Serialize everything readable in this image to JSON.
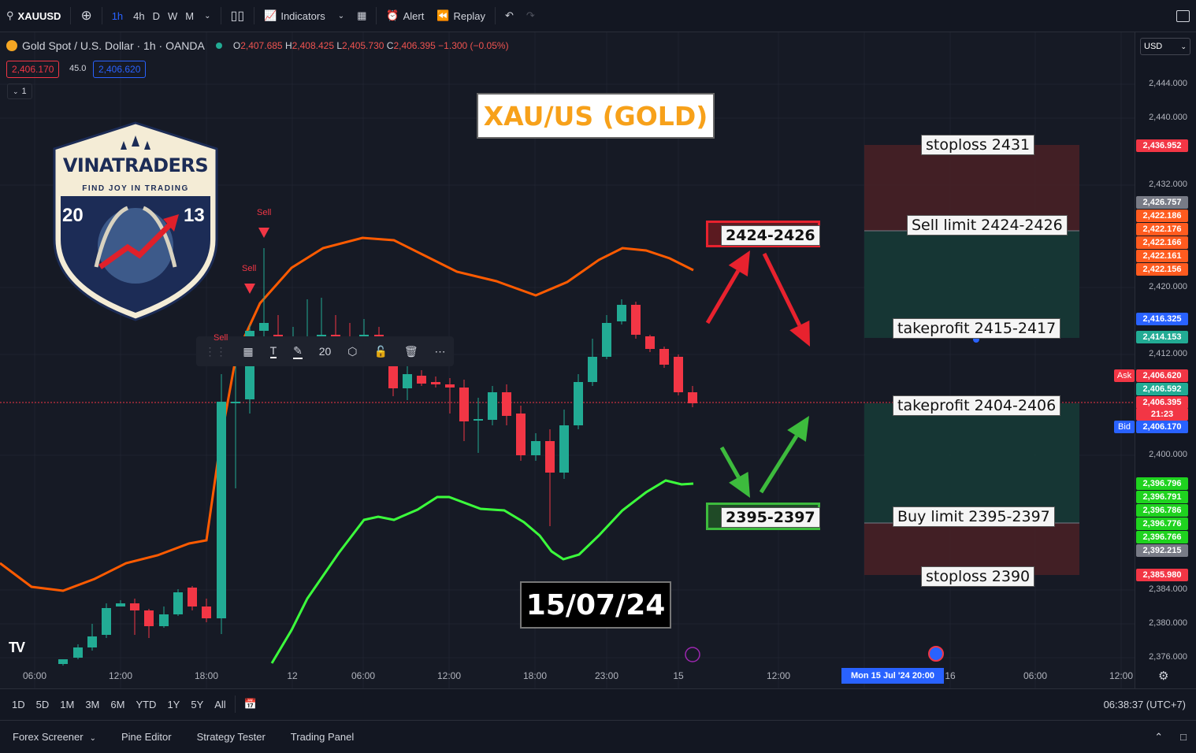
{
  "topbar": {
    "symbol": "XAUUSD",
    "intervals": [
      "1h",
      "4h",
      "D",
      "W",
      "M"
    ],
    "indicators": "Indicators",
    "alert": "Alert",
    "replay": "Replay"
  },
  "legend": {
    "title": "Gold Spot / U.S. Dollar · 1h · OANDA",
    "o_label": "O",
    "o": "2,407.685",
    "h_label": "H",
    "h": "2,408.425",
    "l_label": "L",
    "l": "2,405.730",
    "c_label": "C",
    "c": "2,406.395",
    "change": "−1.300 (−0.05%)",
    "bid": "2,406.170",
    "spread": "45.0",
    "ask": "2,406.620",
    "collapse": "1"
  },
  "currency": "USD",
  "chart_title": "XAU/US (GOLD)",
  "date_box": "15/07/24",
  "logo": {
    "name": "VINATRADERS",
    "tagline": "FIND JOY IN TRADING",
    "year_left": "20",
    "year_right": "13"
  },
  "signals": [
    "Sell",
    "Sell",
    "Sell"
  ],
  "float_toolbar": {
    "size": "20"
  },
  "zones": {
    "sell_zone_label": "2424-2426",
    "buy_zone_label": "2395-2397",
    "stoploss_top": "stoploss 2431",
    "sell_limit": "Sell limit 2424-2426",
    "takeprofit_1": "takeprofit 2415-2417",
    "takeprofit_2": "takeprofit 2404-2406",
    "buy_limit": "Buy limit 2395-2397",
    "stoploss_bottom": "stoploss 2390"
  },
  "price_axis": {
    "labels": [
      "2,444.000",
      "2,440.000",
      "2,432.000",
      "2,420.000",
      "2,412.000",
      "2,400.000",
      "2,384.000",
      "2,380.000",
      "2,376.000"
    ],
    "tags": [
      {
        "text": "2,436.952",
        "color": "#f23645"
      },
      {
        "text": "2,426.757",
        "color": "#787b86"
      },
      {
        "text": "2,422.186",
        "color": "#ff5b1f"
      },
      {
        "text": "2,422.176",
        "color": "#ff5b1f"
      },
      {
        "text": "2,422.166",
        "color": "#ff5b1f"
      },
      {
        "text": "2,422.161",
        "color": "#ff5b1f"
      },
      {
        "text": "2,422.156",
        "color": "#ff5b1f"
      },
      {
        "text": "2,416.325",
        "color": "#2962ff"
      },
      {
        "text": "2,414.153",
        "color": "#22ab94"
      },
      {
        "text": "2,406.620",
        "color": "#f23645"
      },
      {
        "text": "2,406.592",
        "color": "#22ab94"
      },
      {
        "text": "2,406.395",
        "color": "#f23645"
      },
      {
        "text": "21:23",
        "color": "#f23645"
      },
      {
        "text": "2,406.170",
        "color": "#2962ff"
      },
      {
        "text": "2,396.796",
        "color": "#1fd31f"
      },
      {
        "text": "2,396.791",
        "color": "#1fd31f"
      },
      {
        "text": "2,396.786",
        "color": "#1fd31f"
      },
      {
        "text": "2,396.776",
        "color": "#1fd31f"
      },
      {
        "text": "2,396.766",
        "color": "#1fd31f"
      },
      {
        "text": "2,392.215",
        "color": "#787b86"
      },
      {
        "text": "2,385.980",
        "color": "#f23645"
      }
    ],
    "ask_label": "Ask",
    "bid_label": "Bid"
  },
  "time_axis": {
    "labels": [
      "06:00",
      "12:00",
      "18:00",
      "12",
      "06:00",
      "12:00",
      "18:00",
      "23:00",
      "15",
      "12:00",
      "16",
      "06:00",
      "12:00"
    ],
    "crosshair": "Mon 15 Jul '24   20:00"
  },
  "bottombar": {
    "ranges": [
      "1D",
      "5D",
      "1M",
      "3M",
      "6M",
      "YTD",
      "1Y",
      "5Y",
      "All"
    ],
    "clock": "06:38:37 (UTC+7)"
  },
  "panels": [
    "Forex Screener",
    "Pine Editor",
    "Strategy Tester",
    "Trading Panel"
  ],
  "colors": {
    "up": "#22ab94",
    "down": "#f23645",
    "upper_band": "#ff5b00",
    "lower_band": "#3cff3c"
  }
}
